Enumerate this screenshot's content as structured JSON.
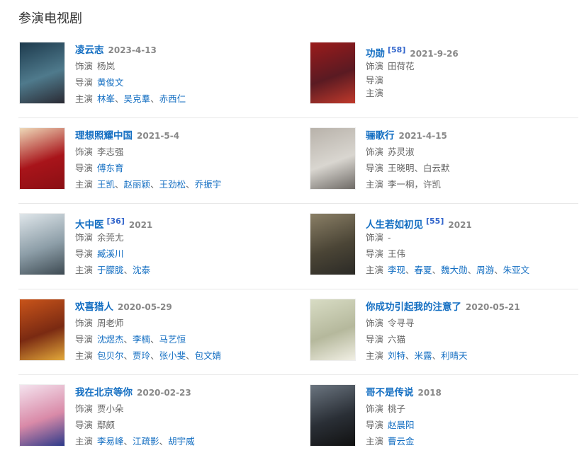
{
  "section_title": "参演电视剧",
  "labels": {
    "role": "饰演",
    "director": "导演",
    "cast": "主演",
    "separator": "、"
  },
  "accent_color": "#136ec2",
  "items": [
    {
      "title": "凌云志",
      "ref": "",
      "date": "2023-4-13",
      "poster_colors": [
        "#1d3a4d",
        "#4f7a8c",
        "#2a2a33"
      ],
      "role": [
        {
          "name": "杨岚",
          "link": false
        }
      ],
      "director": [
        {
          "name": "黄俊文",
          "link": true
        }
      ],
      "cast": [
        {
          "name": "林峯",
          "link": true
        },
        {
          "name": "吴克羣",
          "link": true
        },
        {
          "name": "赤西仁",
          "link": true
        }
      ]
    },
    {
      "title": "功勋",
      "ref": "[58]",
      "date": "2021-9-26",
      "poster_colors": [
        "#9b1b1b",
        "#5a1a22",
        "#c0392b"
      ],
      "role": [
        {
          "name": "田荷花",
          "link": false
        }
      ],
      "director": [],
      "cast": []
    },
    {
      "title": "理想照耀中国",
      "ref": "",
      "date": "2021-5-4",
      "poster_colors": [
        "#eed9b8",
        "#a8141a",
        "#8a0f14"
      ],
      "role": [
        {
          "name": "李志强",
          "link": false
        }
      ],
      "director": [
        {
          "name": "傅东育",
          "link": true
        }
      ],
      "cast": [
        {
          "name": "王凯",
          "link": true
        },
        {
          "name": "赵丽颖",
          "link": true
        },
        {
          "name": "王劲松",
          "link": true
        },
        {
          "name": "乔振宇",
          "link": true
        }
      ]
    },
    {
      "title": "骊歌行",
      "ref": "",
      "date": "2021-4-15",
      "poster_colors": [
        "#b8b2aa",
        "#d9d6d0",
        "#6e6a66"
      ],
      "role": [
        {
          "name": "苏灵淑",
          "link": false
        }
      ],
      "director": [
        {
          "name": "王晓明",
          "link": false
        },
        {
          "name": "白云默",
          "link": false
        }
      ],
      "cast": [
        {
          "name": "李一桐，许凯",
          "link": false
        }
      ]
    },
    {
      "title": "大中医",
      "ref": "[36]",
      "date": "2021",
      "poster_colors": [
        "#dfe6ea",
        "#8d9ea8",
        "#3d4a52"
      ],
      "role": [
        {
          "name": "余莞尢",
          "link": false
        }
      ],
      "director": [
        {
          "name": "臧溪川",
          "link": true
        }
      ],
      "cast": [
        {
          "name": "于朦胧",
          "link": true
        },
        {
          "name": "沈泰",
          "link": true
        }
      ]
    },
    {
      "title": "人生若如初见",
      "ref": "[55]",
      "date": "2021",
      "poster_colors": [
        "#8a7f66",
        "#4b4536",
        "#2b2a26"
      ],
      "role": [
        {
          "name": "-",
          "link": false
        }
      ],
      "director": [
        {
          "name": "王伟",
          "link": false
        }
      ],
      "cast": [
        {
          "name": "李现",
          "link": true
        },
        {
          "name": "春夏",
          "link": true
        },
        {
          "name": "魏大勋",
          "link": true
        },
        {
          "name": "周游",
          "link": true
        },
        {
          "name": "朱亚文",
          "link": true
        }
      ]
    },
    {
      "title": "欢喜猎人",
      "ref": "",
      "date": "2020-05-29",
      "poster_colors": [
        "#c9541a",
        "#7a2a12",
        "#e3a93a"
      ],
      "role": [
        {
          "name": "周老师",
          "link": false
        }
      ],
      "director": [
        {
          "name": "沈煜杰",
          "link": true
        },
        {
          "name": "李楠",
          "link": true
        },
        {
          "name": "马艺恒",
          "link": true
        }
      ],
      "cast": [
        {
          "name": "包贝尔",
          "link": true
        },
        {
          "name": "贾玲",
          "link": true
        },
        {
          "name": "张小斐",
          "link": true
        },
        {
          "name": "包文婧",
          "link": true
        }
      ]
    },
    {
      "title": "你成功引起我的注意了",
      "ref": "",
      "date": "2020-05-21",
      "poster_colors": [
        "#d8dcc4",
        "#b5b89c",
        "#f1efe4"
      ],
      "role": [
        {
          "name": "令寻寻",
          "link": false
        }
      ],
      "director": [
        {
          "name": "六猫",
          "link": false
        }
      ],
      "cast": [
        {
          "name": "刘特",
          "link": true
        },
        {
          "name": "米露",
          "link": true
        },
        {
          "name": "利晴天",
          "link": true
        }
      ]
    },
    {
      "title": "我在北京等你",
      "ref": "",
      "date": "2020-02-23",
      "poster_colors": [
        "#f4e3ee",
        "#d98aa8",
        "#2d3a8a"
      ],
      "role": [
        {
          "name": "贾小朵",
          "link": false
        }
      ],
      "director": [
        {
          "name": "鄢颇",
          "link": false
        }
      ],
      "cast": [
        {
          "name": "李易峰",
          "link": true
        },
        {
          "name": "江疏影",
          "link": true
        },
        {
          "name": "胡宇威",
          "link": true
        }
      ]
    },
    {
      "title": "哥不是传说",
      "ref": "",
      "date": "2018",
      "poster_colors": [
        "#6b7580",
        "#2a2f36",
        "#111"
      ],
      "role": [
        {
          "name": "桃子",
          "link": false
        }
      ],
      "director": [
        {
          "name": "赵晨阳",
          "link": true
        }
      ],
      "cast": [
        {
          "name": "曹云金",
          "link": true
        }
      ]
    }
  ]
}
